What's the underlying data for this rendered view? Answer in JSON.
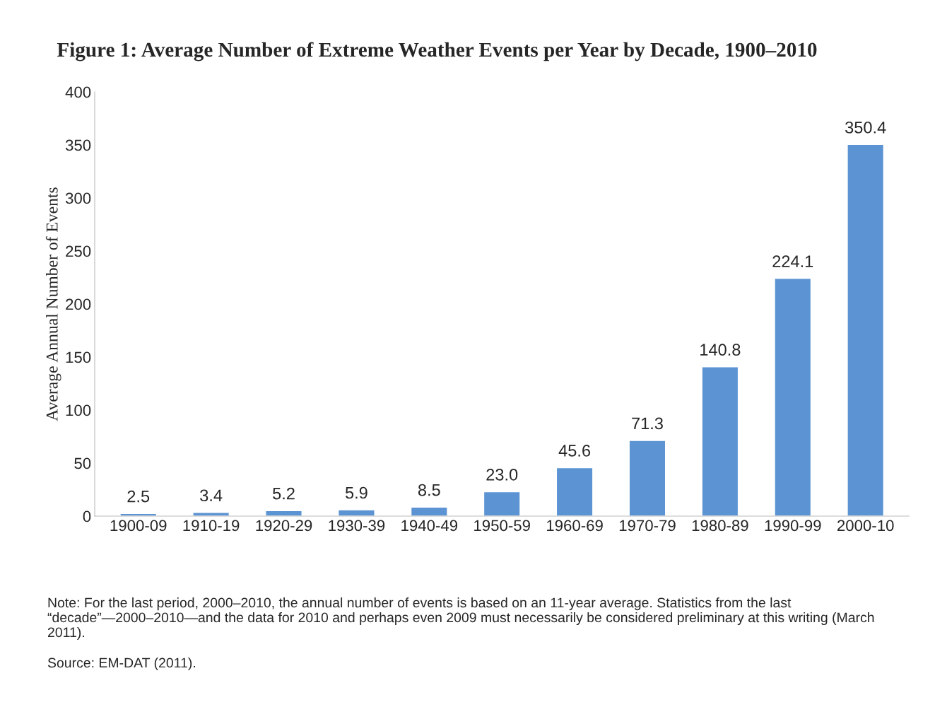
{
  "chart_data": {
    "type": "bar",
    "title": "Figure 1: Average Number of Extreme Weather Events per Year by Decade, 1900–2010",
    "ylabel": "Average Annual Number of Events",
    "categories": [
      "1900-09",
      "1910-19",
      "1920-29",
      "1930-39",
      "1940-49",
      "1950-59",
      "1960-69",
      "1970-79",
      "1980-89",
      "1990-99",
      "2000-10"
    ],
    "values": [
      2.5,
      3.4,
      5.2,
      5.9,
      8.5,
      23.0,
      45.6,
      71.3,
      140.8,
      224.1,
      350.4
    ],
    "value_labels": [
      "2.5",
      "3.4",
      "5.2",
      "5.9",
      "8.5",
      "23.0",
      "45.6",
      "71.3",
      "140.8",
      "224.1",
      "350.4"
    ],
    "color": "#5b93d3",
    "ylim": [
      0,
      400
    ],
    "yticks": [
      0,
      50,
      100,
      150,
      200,
      250,
      300,
      350,
      400
    ],
    "grid": false,
    "annotations": [
      "Note: For the last period, 2000–2010, the annual number of events is based on an 11-year average. Statistics from the last “decade”—2000–2010—and the data for 2010 and perhaps even 2009 must necessarily be considered preliminary at this writing (March 2011).",
      "Source: EM-DAT (2011)."
    ]
  }
}
